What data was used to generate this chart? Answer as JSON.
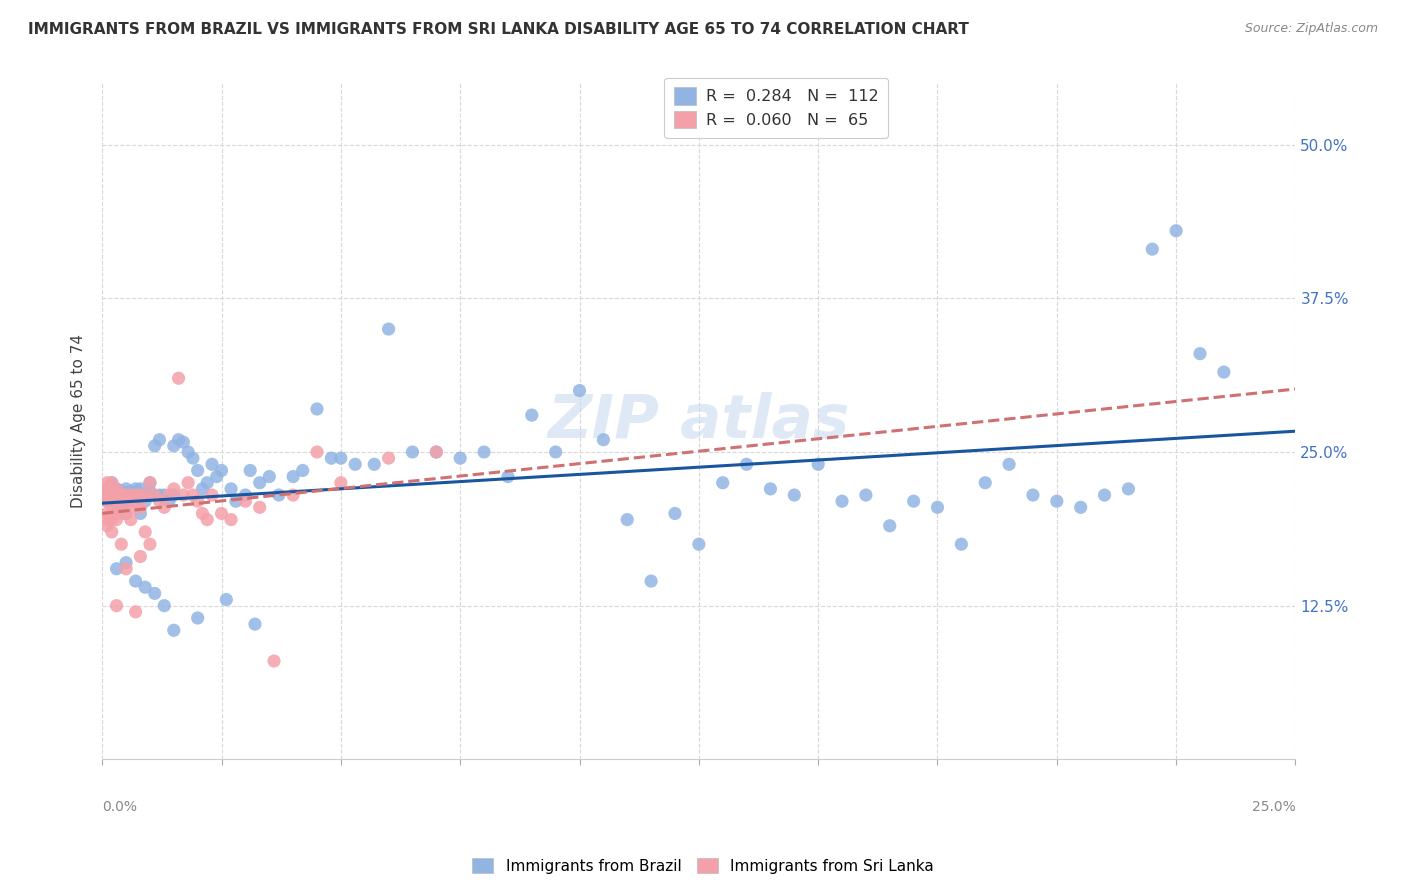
{
  "title": "IMMIGRANTS FROM BRAZIL VS IMMIGRANTS FROM SRI LANKA DISABILITY AGE 65 TO 74 CORRELATION CHART",
  "source": "Source: ZipAtlas.com",
  "ylabel": "Disability Age 65 to 74",
  "brazil_R": 0.284,
  "brazil_N": 112,
  "srilanka_R": 0.06,
  "srilanka_N": 65,
  "brazil_color": "#92B4E3",
  "srilanka_color": "#F4A0A8",
  "brazil_line_color": "#1A55A0",
  "srilanka_line_color": "#D07070",
  "legend_label_brazil": "Immigrants from Brazil",
  "legend_label_srilanka": "Immigrants from Sri Lanka",
  "xlim": [
    0.0,
    0.25
  ],
  "ylim": [
    0.0,
    0.55
  ],
  "yticks": [
    0.125,
    0.25,
    0.375,
    0.5
  ],
  "ytick_labels": [
    "12.5%",
    "25.0%",
    "37.5%",
    "50.0%"
  ],
  "brazil_x": [
    0.001,
    0.001,
    0.001,
    0.002,
    0.002,
    0.002,
    0.002,
    0.002,
    0.003,
    0.003,
    0.003,
    0.003,
    0.003,
    0.004,
    0.004,
    0.004,
    0.004,
    0.005,
    0.005,
    0.005,
    0.005,
    0.006,
    0.006,
    0.006,
    0.007,
    0.007,
    0.007,
    0.008,
    0.008,
    0.008,
    0.009,
    0.009,
    0.01,
    0.01,
    0.01,
    0.011,
    0.012,
    0.012,
    0.013,
    0.014,
    0.015,
    0.015,
    0.016,
    0.017,
    0.018,
    0.019,
    0.02,
    0.021,
    0.022,
    0.023,
    0.024,
    0.025,
    0.027,
    0.028,
    0.03,
    0.031,
    0.033,
    0.035,
    0.037,
    0.04,
    0.042,
    0.045,
    0.048,
    0.05,
    0.053,
    0.057,
    0.06,
    0.065,
    0.07,
    0.075,
    0.08,
    0.085,
    0.09,
    0.095,
    0.1,
    0.105,
    0.11,
    0.115,
    0.12,
    0.125,
    0.13,
    0.135,
    0.14,
    0.145,
    0.15,
    0.155,
    0.16,
    0.165,
    0.17,
    0.175,
    0.18,
    0.185,
    0.19,
    0.195,
    0.2,
    0.205,
    0.21,
    0.215,
    0.22,
    0.225,
    0.23,
    0.235,
    0.003,
    0.005,
    0.007,
    0.009,
    0.011,
    0.013,
    0.015,
    0.02,
    0.026,
    0.032
  ],
  "brazil_y": [
    0.215,
    0.22,
    0.21,
    0.218,
    0.215,
    0.222,
    0.21,
    0.225,
    0.215,
    0.22,
    0.218,
    0.21,
    0.2,
    0.215,
    0.218,
    0.21,
    0.205,
    0.215,
    0.22,
    0.21,
    0.2,
    0.218,
    0.215,
    0.21,
    0.215,
    0.22,
    0.21,
    0.215,
    0.22,
    0.2,
    0.215,
    0.21,
    0.218,
    0.215,
    0.225,
    0.255,
    0.26,
    0.215,
    0.215,
    0.21,
    0.215,
    0.255,
    0.26,
    0.258,
    0.25,
    0.245,
    0.235,
    0.22,
    0.225,
    0.24,
    0.23,
    0.235,
    0.22,
    0.21,
    0.215,
    0.235,
    0.225,
    0.23,
    0.215,
    0.23,
    0.235,
    0.285,
    0.245,
    0.245,
    0.24,
    0.24,
    0.35,
    0.25,
    0.25,
    0.245,
    0.25,
    0.23,
    0.28,
    0.25,
    0.3,
    0.26,
    0.195,
    0.145,
    0.2,
    0.175,
    0.225,
    0.24,
    0.22,
    0.215,
    0.24,
    0.21,
    0.215,
    0.19,
    0.21,
    0.205,
    0.175,
    0.225,
    0.24,
    0.215,
    0.21,
    0.205,
    0.215,
    0.22,
    0.415,
    0.43,
    0.33,
    0.315,
    0.155,
    0.16,
    0.145,
    0.14,
    0.135,
    0.125,
    0.105,
    0.115,
    0.13,
    0.11
  ],
  "srilanka_x": [
    0.001,
    0.001,
    0.001,
    0.001,
    0.001,
    0.001,
    0.001,
    0.001,
    0.002,
    0.002,
    0.002,
    0.002,
    0.002,
    0.002,
    0.002,
    0.003,
    0.003,
    0.003,
    0.003,
    0.003,
    0.003,
    0.004,
    0.004,
    0.004,
    0.004,
    0.005,
    0.005,
    0.005,
    0.005,
    0.006,
    0.006,
    0.006,
    0.007,
    0.007,
    0.007,
    0.008,
    0.008,
    0.008,
    0.009,
    0.009,
    0.01,
    0.01,
    0.011,
    0.012,
    0.013,
    0.014,
    0.015,
    0.016,
    0.017,
    0.018,
    0.019,
    0.02,
    0.021,
    0.022,
    0.023,
    0.025,
    0.027,
    0.03,
    0.033,
    0.036,
    0.04,
    0.045,
    0.05,
    0.06,
    0.07
  ],
  "srilanka_y": [
    0.22,
    0.225,
    0.218,
    0.21,
    0.215,
    0.2,
    0.195,
    0.19,
    0.225,
    0.218,
    0.215,
    0.21,
    0.2,
    0.195,
    0.185,
    0.22,
    0.215,
    0.21,
    0.2,
    0.195,
    0.125,
    0.215,
    0.21,
    0.2,
    0.175,
    0.215,
    0.21,
    0.2,
    0.155,
    0.215,
    0.21,
    0.195,
    0.215,
    0.205,
    0.12,
    0.215,
    0.205,
    0.165,
    0.215,
    0.185,
    0.225,
    0.175,
    0.215,
    0.21,
    0.205,
    0.215,
    0.22,
    0.31,
    0.215,
    0.225,
    0.215,
    0.21,
    0.2,
    0.195,
    0.215,
    0.2,
    0.195,
    0.21,
    0.205,
    0.08,
    0.215,
    0.25,
    0.225,
    0.245,
    0.25
  ]
}
